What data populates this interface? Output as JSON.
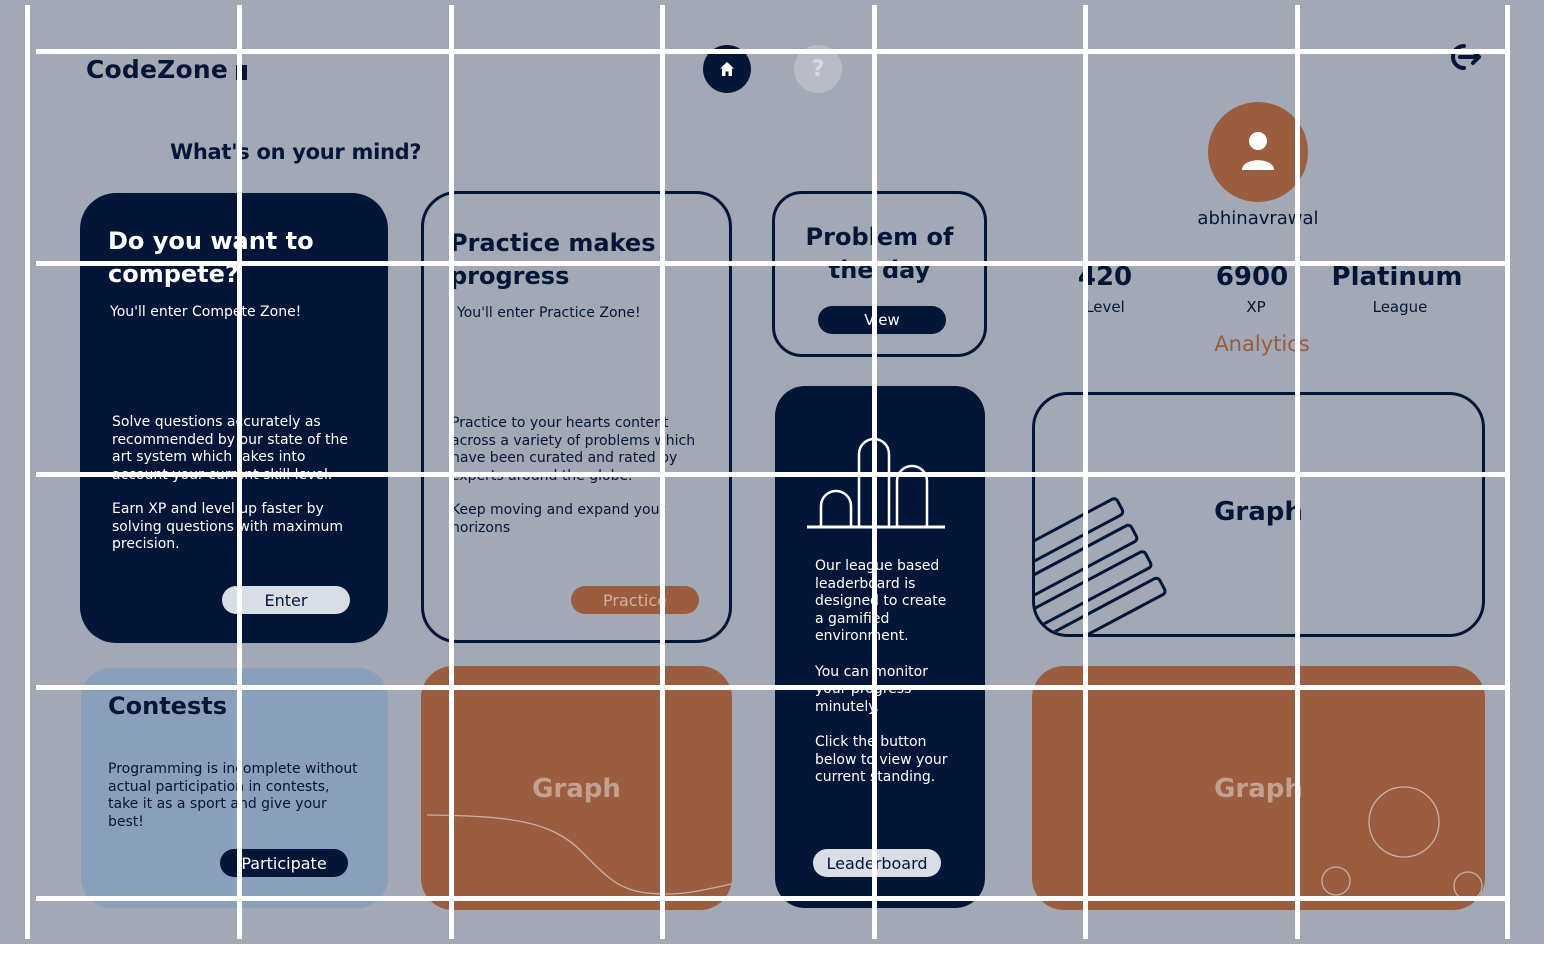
{
  "app": {
    "logo_text": "CodeZone"
  },
  "header": {
    "home_icon": "home-icon",
    "help_icon": "help-icon",
    "help_glyph": "?",
    "logout_icon": "logout-icon"
  },
  "prompt": "What's on your mind?",
  "compete_card": {
    "title_line1": "Do you want to",
    "title_line2": "compete?",
    "subtitle": "You'll enter Compete Zone!",
    "para1_l1": "Solve questions accurately as",
    "para1_l2": "recommended by our state of the",
    "para1_l3": "art system which takes into",
    "para1_l4": "account your current skill level.",
    "para2_l1": "Earn XP and level up faster by",
    "para2_l2": "solving questions with maximum",
    "para2_l3": "precision.",
    "button": "Enter"
  },
  "practice_card": {
    "title_line1": "Practice makes",
    "title_line2": "progress",
    "subtitle": "You'll enter Practice Zone!",
    "para1_l1": "Practice to your hearts content",
    "para1_l2": "across a variety of problems which",
    "para1_l3": "have been curated and rated by",
    "para1_l4": "experts around the globe.",
    "para2_l1": "Keep moving and expand your",
    "para2_l2": "horizons",
    "button": "Practice"
  },
  "potd_card": {
    "title_line1": "Problem of",
    "title_line2": "the day",
    "button": "View"
  },
  "leaderboard_card": {
    "icon": "leaderboard-icon",
    "para1_l1": "Our league based",
    "para1_l2": "leaderboard is",
    "para1_l3": "designed to create",
    "para1_l4": "a gamified",
    "para1_l5": "environment.",
    "para2_l1": "You can monitor",
    "para2_l2": "your progress",
    "para2_l3": "minutely.",
    "para3_l1": "Click the button",
    "para3_l2": "below to view your",
    "para3_l3": "current standing.",
    "button": "Leaderboard"
  },
  "contests_card": {
    "title": "Contests",
    "para_l1": "Programming is incomplete without",
    "para_l2": "actual participation in contests,",
    "para_l3": "take it as a sport and give your",
    "para_l4": "best!",
    "button": "Participate"
  },
  "graphs": {
    "middle_label": "Graph",
    "right_outline_label": "Graph",
    "right_bottom_label": "Graph"
  },
  "profile": {
    "avatar_icon": "user-icon",
    "username": "abhinavrawal",
    "stats": [
      {
        "value": "420",
        "label": "Level"
      },
      {
        "value": "6900",
        "label": "XP"
      },
      {
        "value": "Platinum",
        "label": "League"
      }
    ],
    "analytics_link": "Analytics"
  },
  "colors": {
    "background": "#a3a8b5",
    "navy": "#041638",
    "orange": "#9a5d3f",
    "light_blue": "#8a9fba",
    "grid_overlay": "#ffffff"
  }
}
